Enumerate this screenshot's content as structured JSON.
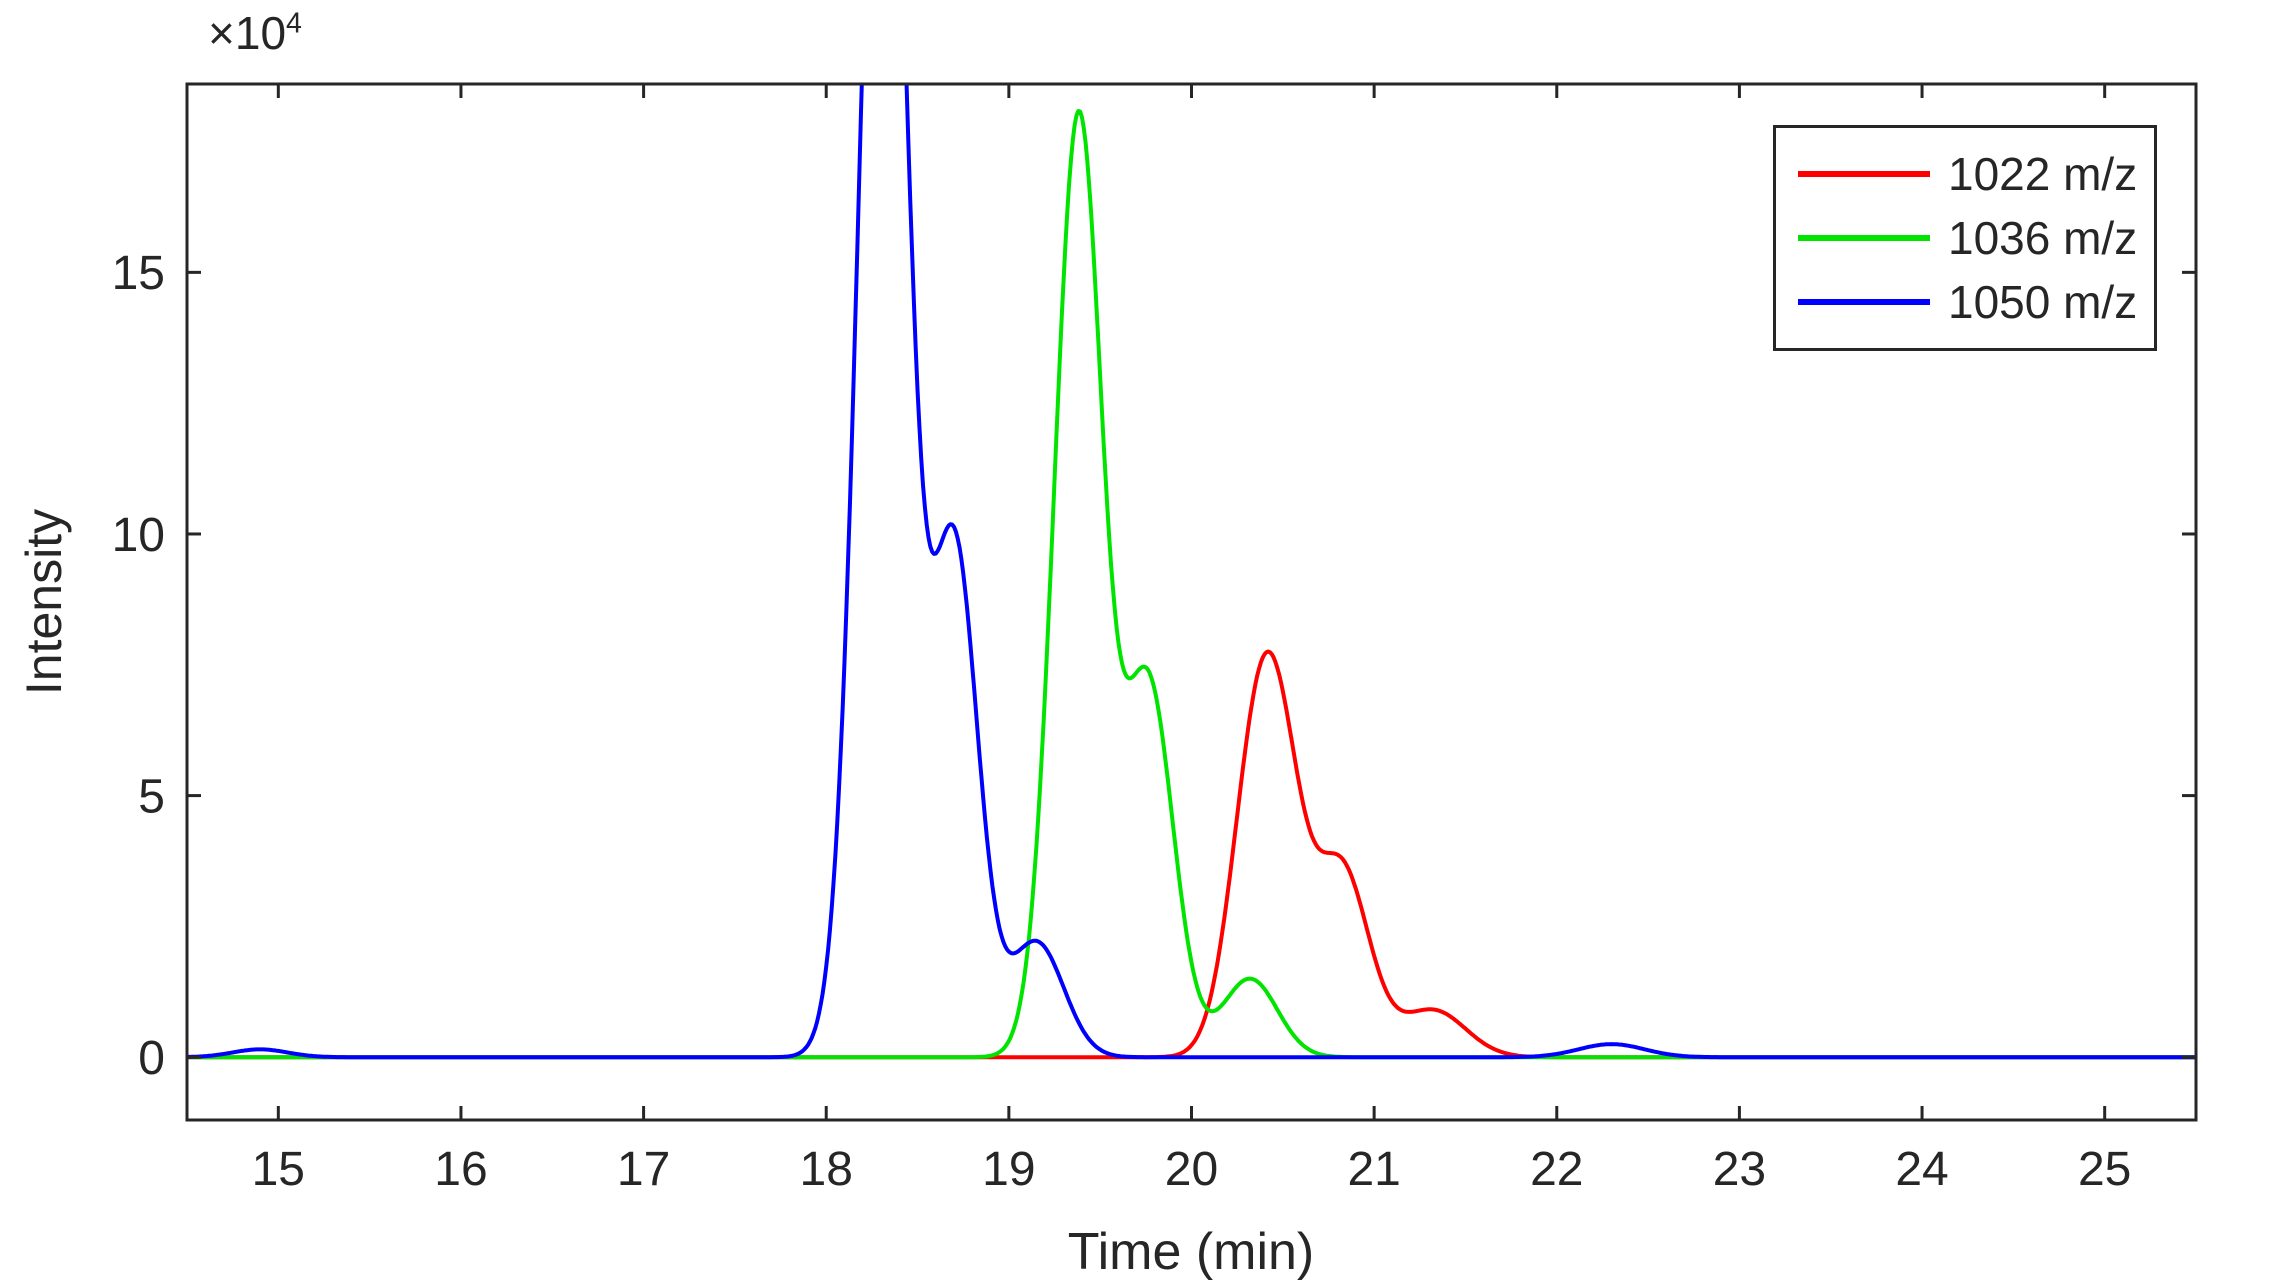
{
  "figure": {
    "background": "#ffffff",
    "frame_color": "#262626",
    "text_color": "#262626"
  },
  "axis": {
    "x_label": "Time (min)",
    "y_label": "Intensity",
    "exponent_base": "×10",
    "exponent_power": "4"
  },
  "chart_data": {
    "type": "line",
    "title": "",
    "xlabel": "Time (min)",
    "ylabel": "Intensity",
    "xlim": [
      14.5,
      25.5
    ],
    "ylim_e4": [
      -1.2,
      18.6
    ],
    "xticks": [
      15,
      16,
      17,
      18,
      19,
      20,
      21,
      22,
      23,
      24,
      25
    ],
    "yticks_e4": [
      0,
      5,
      10,
      15
    ],
    "y_multiplier": 10000,
    "grid": false,
    "legend_position": "top-right",
    "line_width": 4,
    "series": [
      {
        "name": "1022 m/z",
        "color": "#ff0000",
        "peaks": [
          {
            "center": 20.35,
            "amplitude_e4": 5.2,
            "sigma": 0.14
          },
          {
            "center": 20.5,
            "amplitude_e4": 3.7,
            "sigma": 0.13
          },
          {
            "center": 20.82,
            "amplitude_e4": 3.6,
            "sigma": 0.15
          },
          {
            "center": 21.32,
            "amplitude_e4": 0.9,
            "sigma": 0.18
          }
        ]
      },
      {
        "name": "1036 m/z",
        "color": "#00e400",
        "peaks": [
          {
            "center": 19.35,
            "amplitude_e4": 11.1,
            "sigma": 0.13
          },
          {
            "center": 19.42,
            "amplitude_e4": 7.5,
            "sigma": 0.12
          },
          {
            "center": 19.76,
            "amplitude_e4": 7.2,
            "sigma": 0.14
          },
          {
            "center": 20.32,
            "amplitude_e4": 1.5,
            "sigma": 0.15
          }
        ]
      },
      {
        "name": "1050 m/z",
        "color": "#0000ff",
        "peaks": [
          {
            "center": 18.3,
            "amplitude_e4": 17.6,
            "sigma": 0.135
          },
          {
            "center": 18.33,
            "amplitude_e4": 10.6,
            "sigma": 0.12
          },
          {
            "center": 18.7,
            "amplitude_e4": 9.8,
            "sigma": 0.13
          },
          {
            "center": 19.15,
            "amplitude_e4": 2.2,
            "sigma": 0.15
          },
          {
            "center": 14.9,
            "amplitude_e4": 0.15,
            "sigma": 0.15
          },
          {
            "center": 22.3,
            "amplitude_e4": 0.25,
            "sigma": 0.18
          }
        ]
      }
    ]
  }
}
